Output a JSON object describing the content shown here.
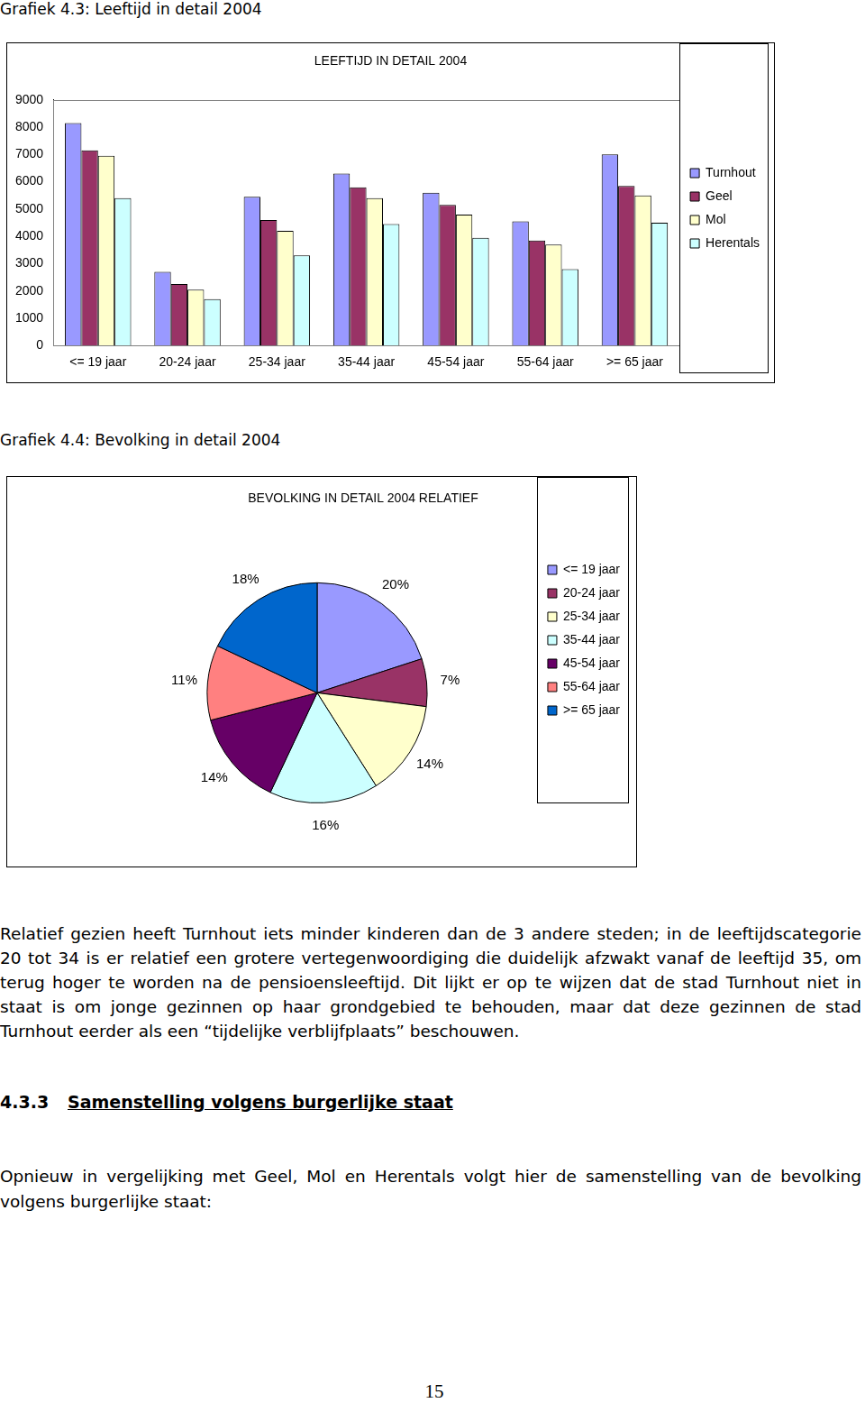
{
  "captions": [
    "Grafiek 4.3: Leeftijd in detail 2004",
    "Grafiek 4.4: Bevolking in detail 2004"
  ],
  "chart_data": [
    {
      "type": "bar",
      "title": "LEEFTIJD IN DETAIL 2004",
      "categories": [
        "<= 19 jaar",
        "20-24 jaar",
        "25-34 jaar",
        "35-44 jaar",
        "45-54 jaar",
        "55-64 jaar",
        ">= 65 jaar"
      ],
      "series": [
        {
          "name": "Turnhout",
          "color": "#9999ff",
          "values": [
            8150,
            2700,
            5450,
            6300,
            5600,
            4550,
            7000
          ]
        },
        {
          "name": "Geel",
          "color": "#993366",
          "values": [
            7150,
            2250,
            4600,
            5800,
            5150,
            3850,
            5850
          ]
        },
        {
          "name": "Mol",
          "color": "#ffffcc",
          "values": [
            6950,
            2050,
            4200,
            5400,
            4800,
            3700,
            5500
          ]
        },
        {
          "name": "Herentals",
          "color": "#ccffff",
          "values": [
            5400,
            1700,
            3300,
            4450,
            3950,
            2800,
            4500
          ]
        }
      ],
      "ylim": [
        0,
        9000
      ],
      "yticks": [
        0,
        1000,
        2000,
        3000,
        4000,
        5000,
        6000,
        7000,
        8000,
        9000
      ],
      "grid": false,
      "legend": "right"
    },
    {
      "type": "pie",
      "title": "BEVOLKING IN DETAIL 2004 RELATIEF",
      "categories": [
        "<= 19 jaar",
        "20-24 jaar",
        "25-34 jaar",
        "35-44 jaar",
        "45-54 jaar",
        "55-64 jaar",
        ">= 65 jaar"
      ],
      "values": [
        20,
        7,
        14,
        16,
        14,
        11,
        18
      ],
      "value_labels": [
        "20%",
        "7%",
        "14%",
        "16%",
        "14%",
        "11%",
        "18%"
      ],
      "colors": [
        "#9999ff",
        "#993366",
        "#ffffcc",
        "#ccffff",
        "#660066",
        "#ff8080",
        "#0066cc"
      ],
      "data_labels": true,
      "legend": "right"
    }
  ],
  "body": {
    "paragraph_1": "Relatief gezien heeft Turnhout iets minder kinderen dan de 3 andere steden; in de leeftijdscategorie 20 tot 34 is er relatief een grotere vertegenwoordiging die duidelijk afzwakt vanaf de leeftijd 35, om terug hoger te worden na de pensioensleeftijd. Dit lijkt er op te wijzen dat de stad Turnhout niet in staat is om jonge gezinnen op haar grondgebied te behouden, maar dat deze gezinnen de stad Turnhout eerder als een “tijdelijke verblijfplaats” beschouwen.",
    "heading_number": "4.3.3",
    "heading_title": "Samenstelling volgens burgerlijke staat",
    "paragraph_2": "Opnieuw in vergelijking met Geel, Mol en Herentals volgt hier de samenstelling van de bevolking volgens burgerlijke staat:",
    "page_number": "15"
  }
}
